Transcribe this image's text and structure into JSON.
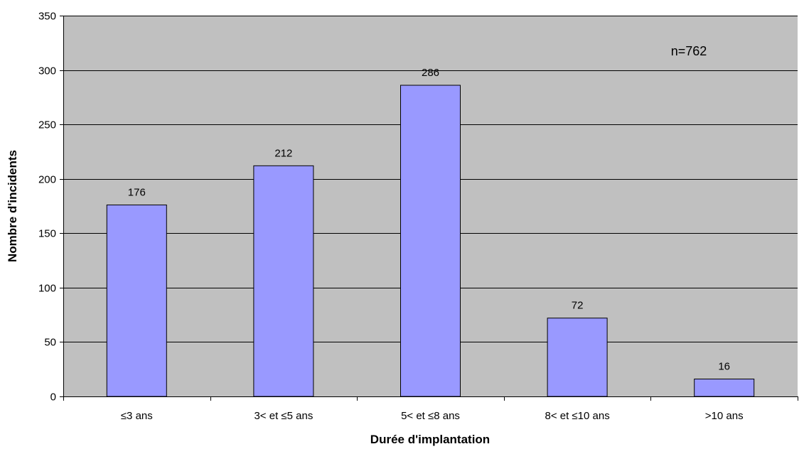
{
  "chart_data": {
    "type": "bar",
    "title": "",
    "xlabel": "Durée d'implantation",
    "ylabel": "Nombre d'incidents",
    "categories": [
      "≤3 ans",
      "3< et ≤5 ans",
      "5< et ≤8 ans",
      "8< et ≤10 ans",
      ">10 ans"
    ],
    "values": [
      176,
      212,
      286,
      72,
      16
    ],
    "data_labels": [
      "176",
      "212",
      "286",
      "72",
      "16"
    ],
    "ylim": [
      0,
      350
    ],
    "yticks": [
      0,
      50,
      100,
      150,
      200,
      250,
      300,
      350
    ],
    "grid": true,
    "legend": "none",
    "annotation": "n=762",
    "colors": {
      "bar_fill": "#9999ff",
      "plot_background": "#c0c0c0",
      "gridline": "#000000"
    }
  }
}
